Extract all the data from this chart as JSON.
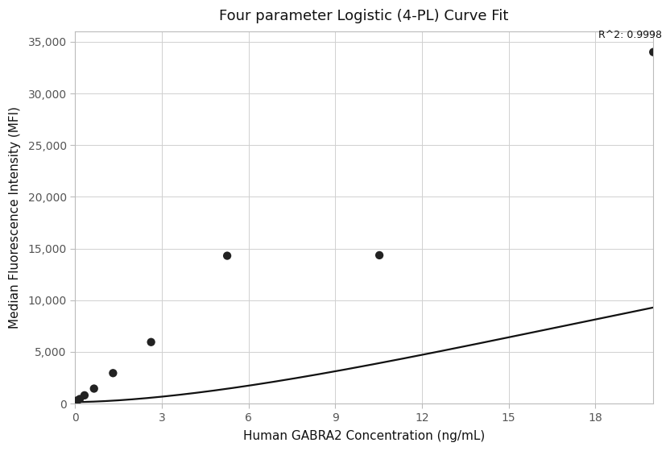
{
  "title": "Four parameter Logistic (4-PL) Curve Fit",
  "xlabel": "Human GABRA2 Concentration (ng/mL)",
  "ylabel": "Median Fluorescence Intensity (MFI)",
  "r_squared": "R^2: 0.9998",
  "data_points_x": [
    0.082,
    0.164,
    0.329,
    0.658,
    1.316,
    2.632,
    5.264,
    10.528,
    20.0
  ],
  "data_points_y": [
    310,
    440,
    800,
    1450,
    2950,
    5950,
    14300,
    14350,
    34000
  ],
  "xlim": [
    0,
    20
  ],
  "ylim": [
    0,
    36000
  ],
  "xticks": [
    0,
    3,
    6,
    9,
    12,
    15,
    18
  ],
  "yticks": [
    0,
    5000,
    10000,
    15000,
    20000,
    25000,
    30000,
    35000
  ],
  "ytick_labels": [
    "0",
    "5,000",
    "10,000",
    "15,000",
    "20,000",
    "25,000",
    "30,000",
    "35,000"
  ],
  "line_color": "#111111",
  "dot_color": "#222222",
  "dot_size": 55,
  "background_color": "#ffffff",
  "grid_color": "#d0d0d0",
  "title_fontsize": 13,
  "label_fontsize": 11,
  "tick_fontsize": 10,
  "annotation_fontsize": 9,
  "4pl_params": [
    150.0,
    1.65,
    40.0,
    38000.0
  ]
}
